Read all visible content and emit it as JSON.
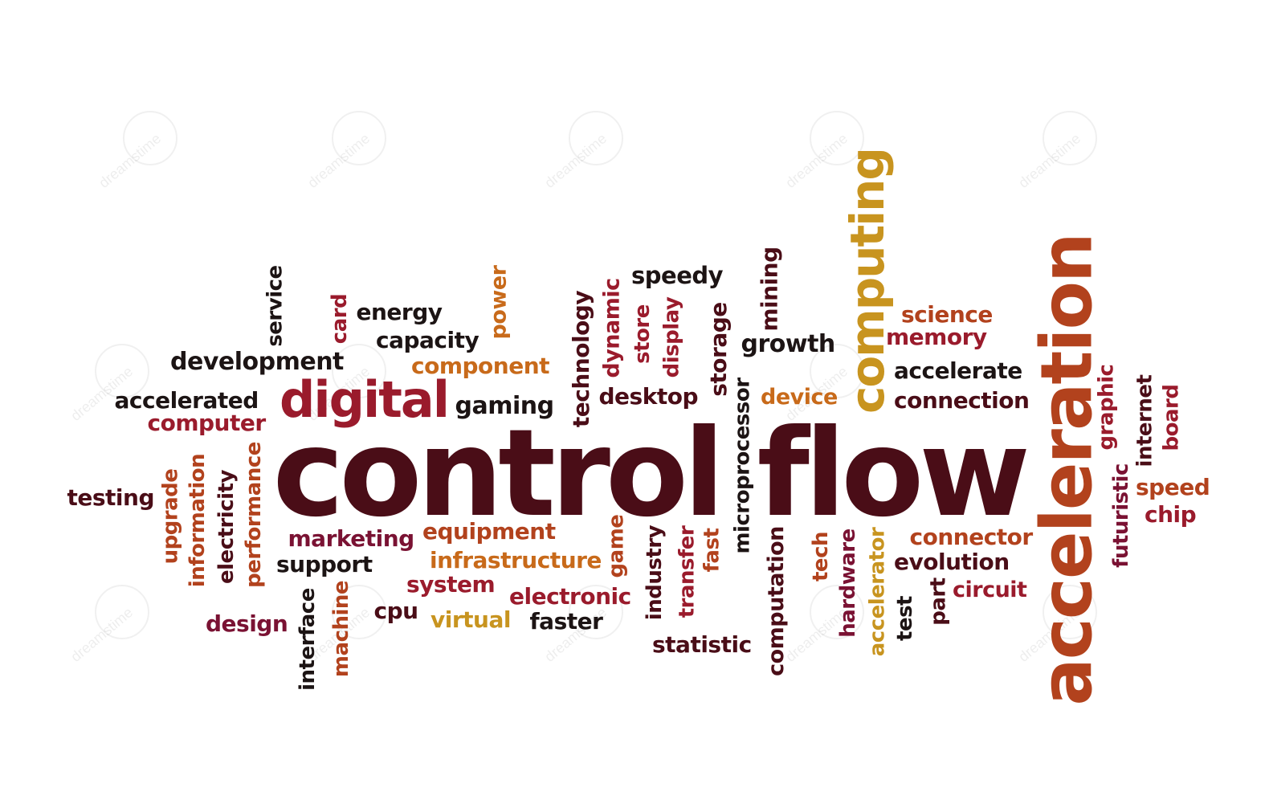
{
  "colors": {
    "dark_maroon": "#4a0d17",
    "crimson": "#9a1b2c",
    "rust": "#b2421d",
    "orange": "#c86a1a",
    "gold": "#c8941f",
    "black": "#1c1414",
    "plum": "#7a1233"
  },
  "words": [
    {
      "id": "control-flow",
      "text": "control flow"
    },
    {
      "id": "acceleration",
      "text": "acceleration"
    },
    {
      "id": "computing",
      "text": "computing"
    },
    {
      "id": "digital",
      "text": "digital"
    },
    {
      "id": "service",
      "text": "service"
    },
    {
      "id": "card",
      "text": "card"
    },
    {
      "id": "energy",
      "text": "energy"
    },
    {
      "id": "capacity",
      "text": "capacity"
    },
    {
      "id": "power",
      "text": "power"
    },
    {
      "id": "technology",
      "text": "technology"
    },
    {
      "id": "dynamic",
      "text": "dynamic"
    },
    {
      "id": "speedy",
      "text": "speedy"
    },
    {
      "id": "store",
      "text": "store"
    },
    {
      "id": "display",
      "text": "display"
    },
    {
      "id": "storage",
      "text": "storage"
    },
    {
      "id": "mining",
      "text": "mining"
    },
    {
      "id": "growth",
      "text": "growth"
    },
    {
      "id": "science",
      "text": "science"
    },
    {
      "id": "memory",
      "text": "memory"
    },
    {
      "id": "development",
      "text": "development"
    },
    {
      "id": "component",
      "text": "component"
    },
    {
      "id": "accelerate",
      "text": "accelerate"
    },
    {
      "id": "accelerated",
      "text": "accelerated"
    },
    {
      "id": "gaming",
      "text": "gaming"
    },
    {
      "id": "desktop",
      "text": "desktop"
    },
    {
      "id": "device",
      "text": "device"
    },
    {
      "id": "connection",
      "text": "connection"
    },
    {
      "id": "computer",
      "text": "computer"
    },
    {
      "id": "microprocessor",
      "text": "microprocessor"
    },
    {
      "id": "graphic",
      "text": "graphic"
    },
    {
      "id": "internet",
      "text": "internet"
    },
    {
      "id": "board",
      "text": "board"
    },
    {
      "id": "testing",
      "text": "testing"
    },
    {
      "id": "upgrade",
      "text": "upgrade"
    },
    {
      "id": "information",
      "text": "information"
    },
    {
      "id": "electricity",
      "text": "electricity"
    },
    {
      "id": "performance",
      "text": "performance"
    },
    {
      "id": "speed",
      "text": "speed"
    },
    {
      "id": "chip",
      "text": "chip"
    },
    {
      "id": "futuristic",
      "text": "futuristic"
    },
    {
      "id": "marketing",
      "text": "marketing"
    },
    {
      "id": "equipment",
      "text": "equipment"
    },
    {
      "id": "game",
      "text": "game"
    },
    {
      "id": "industry",
      "text": "industry"
    },
    {
      "id": "transfer",
      "text": "transfer"
    },
    {
      "id": "fast",
      "text": "fast"
    },
    {
      "id": "computation",
      "text": "computation"
    },
    {
      "id": "tech",
      "text": "tech"
    },
    {
      "id": "hardware",
      "text": "hardware"
    },
    {
      "id": "accelerator",
      "text": "accelerator"
    },
    {
      "id": "connector",
      "text": "connector"
    },
    {
      "id": "support",
      "text": "support"
    },
    {
      "id": "infrastructure",
      "text": "infrastructure"
    },
    {
      "id": "evolution",
      "text": "evolution"
    },
    {
      "id": "system",
      "text": "system"
    },
    {
      "id": "electronic",
      "text": "electronic"
    },
    {
      "id": "circuit",
      "text": "circuit"
    },
    {
      "id": "part",
      "text": "part"
    },
    {
      "id": "test",
      "text": "test"
    },
    {
      "id": "interface",
      "text": "interface"
    },
    {
      "id": "machine",
      "text": "machine"
    },
    {
      "id": "design",
      "text": "design"
    },
    {
      "id": "cpu",
      "text": "cpu"
    },
    {
      "id": "virtual",
      "text": "virtual"
    },
    {
      "id": "faster",
      "text": "faster"
    },
    {
      "id": "statistic",
      "text": "statistic"
    }
  ],
  "watermark": {
    "text": "dreamstime"
  }
}
